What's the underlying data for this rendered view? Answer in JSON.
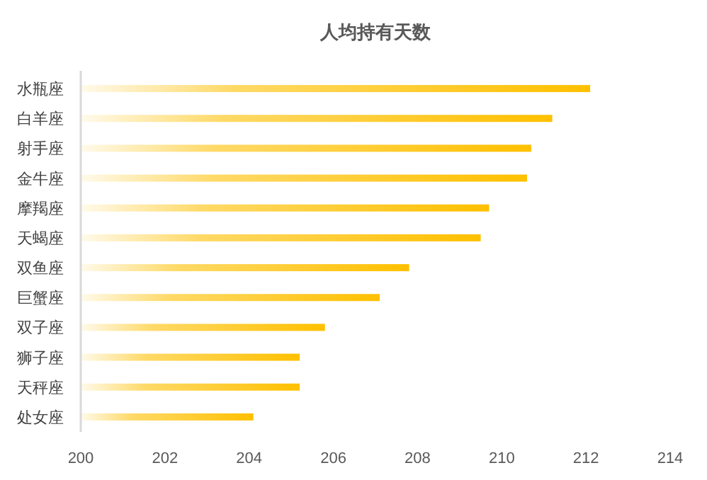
{
  "chart_data": {
    "type": "bar",
    "orientation": "horizontal",
    "title": "人均持有天数",
    "categories": [
      "水瓶座",
      "白羊座",
      "射手座",
      "金牛座",
      "摩羯座",
      "天蝎座",
      "双鱼座",
      "巨蟹座",
      "双子座",
      "狮子座",
      "天秤座",
      "处女座"
    ],
    "values": [
      212.1,
      211.2,
      210.7,
      210.6,
      209.7,
      209.5,
      207.8,
      207.1,
      205.8,
      205.2,
      205.2,
      204.1
    ],
    "color": "#ffc000",
    "xlim": [
      200,
      214
    ],
    "xticks": [
      200,
      202,
      204,
      206,
      208,
      210,
      212,
      214
    ],
    "grid": false
  }
}
